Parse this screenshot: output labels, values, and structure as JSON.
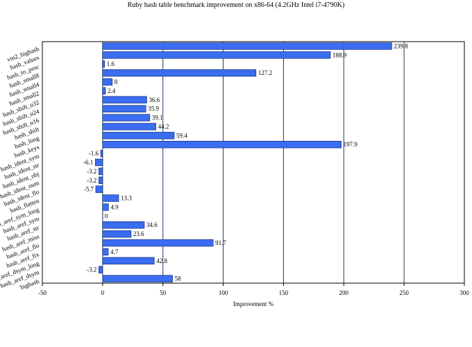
{
  "chart_data": {
    "type": "bar",
    "orientation": "horizontal",
    "title": "Ruby hash table benchmark improvement on x86-64 (4.2GHz Intel i7-4790K)",
    "xlabel": "Improvement %",
    "ylabel": "",
    "xlim": [
      -50,
      300
    ],
    "xticks": [
      -50,
      0,
      50,
      100,
      150,
      200,
      250,
      300
    ],
    "grid": "vertical",
    "legend": "none",
    "bar_color": "#3a6df0",
    "categories": [
      "vm2_bighash",
      "hash_values",
      "hash_to_proc",
      "hash_small8",
      "hash_small4",
      "hash_small2",
      "hash_shift_u32",
      "hash_shift_u24",
      "hash_shift_u16",
      "hash_shift",
      "hash_long",
      "hash_keys",
      "hash_ident_sym",
      "hash_ident_str",
      "hash_ident_obj",
      "hash_ident_num",
      "hash_ident_flo",
      "hash_flatten",
      "hash_aref_sym_long",
      "hash_aref_sym",
      "hash_aref_str",
      "hash_aref_miss",
      "hash_aref_flo",
      "hash_aref_fix",
      "hash_aref_dsym_long",
      "hash_aref_dsym",
      "bighash"
    ],
    "values": [
      239.8,
      188.9,
      1.6,
      127.2,
      8,
      2.4,
      36.6,
      35.9,
      39.1,
      44.2,
      59.4,
      197.9,
      -1.6,
      -6.1,
      -3.2,
      -3.2,
      -5.7,
      13.3,
      4.9,
      0,
      34.6,
      23.6,
      91.7,
      4.7,
      42.8,
      -3.2,
      58
    ],
    "data_labels": [
      "239.8",
      "188.9",
      "1.6",
      "127.2",
      "8",
      "2.4",
      "36.6",
      "35.9",
      "39.1",
      "44.2",
      "59.4",
      "197.9",
      "-1.6",
      "-6.1",
      "-3.2",
      "-3.2",
      "-5.7",
      "13.3",
      "4.9",
      "0",
      "34.6",
      "23.6",
      "91.7",
      "4.7",
      "42.8",
      "-3.2",
      "58"
    ]
  }
}
